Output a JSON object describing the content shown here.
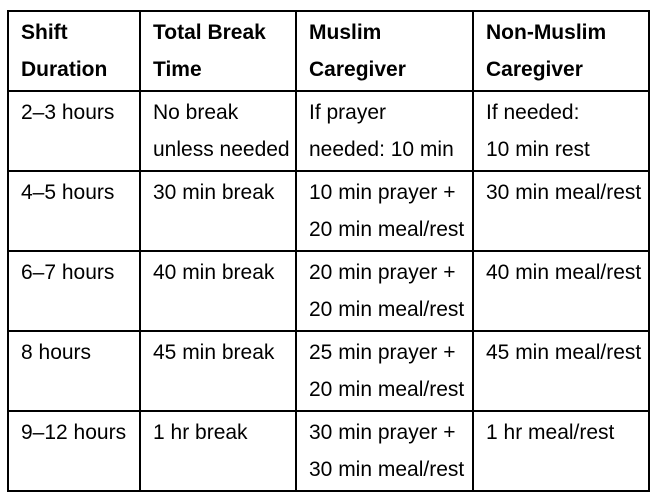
{
  "colors": {
    "background": "#ffffff",
    "border": "#000000",
    "text": "#000000"
  },
  "chart_data": {
    "type": "table",
    "columns": [
      "Shift Duration",
      "Total Break Time",
      "Muslim Caregiver",
      "Non-Muslim Caregiver"
    ],
    "rows": [
      [
        "2–3 hours",
        "No break unless needed",
        "If prayer needed: 10 min",
        "If needed: 10 min rest"
      ],
      [
        "4–5 hours",
        "30 min break",
        "10 min prayer + 20 min meal/rest",
        "30 min meal/rest"
      ],
      [
        "6–7 hours",
        "40 min break",
        "20 min prayer + 20 min meal/rest",
        "40 min meal/rest"
      ],
      [
        "8 hours",
        "45 min break",
        "25 min prayer + 20 min meal/rest",
        "45 min meal/rest"
      ],
      [
        "9–12 hours",
        "1 hr break",
        "30 min prayer + 30 min meal/rest",
        "1 hr meal/rest"
      ]
    ]
  },
  "display": {
    "headers": [
      "Shift\nDuration",
      "Total Break\nTime",
      "Muslim\nCaregiver",
      "Non-Muslim\nCaregiver"
    ],
    "rows": [
      [
        "2–3 hours",
        "No break\nunless needed",
        "If prayer\nneeded: 10 min",
        "If needed:\n10 min rest"
      ],
      [
        "4–5 hours",
        "30 min break",
        "10 min prayer +\n20 min meal/rest",
        "30 min meal/rest"
      ],
      [
        "6–7 hours",
        "40 min break",
        "20 min prayer +\n20 min meal/rest",
        "40 min meal/rest"
      ],
      [
        "8 hours",
        "45 min break",
        "25 min prayer +\n20 min meal/rest",
        "45 min meal/rest"
      ],
      [
        "9–12 hours",
        "1 hr break",
        "30 min prayer +\n30 min meal/rest",
        "1 hr meal/rest"
      ]
    ]
  }
}
